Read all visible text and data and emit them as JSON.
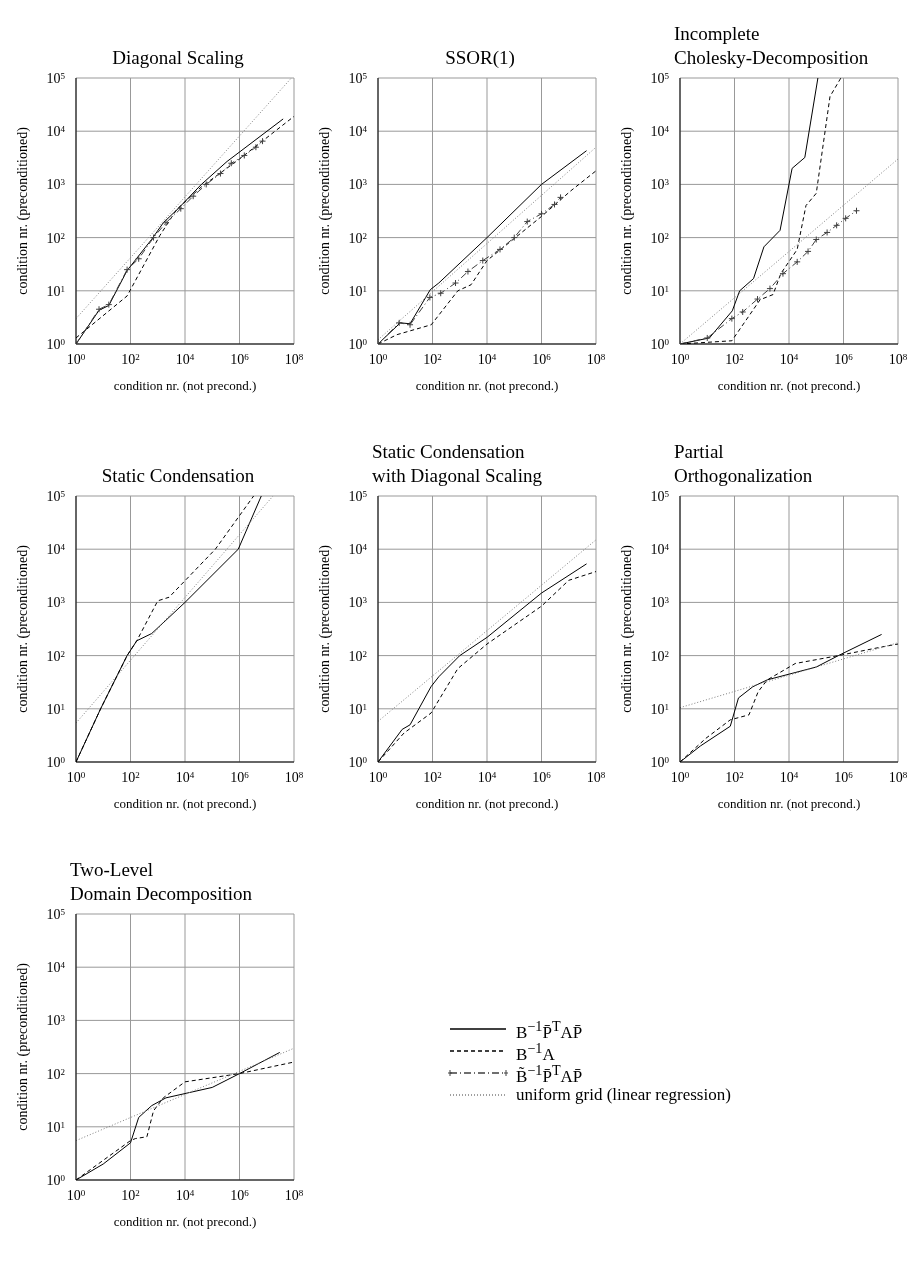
{
  "chart_data": [
    {
      "type": "line",
      "title": "Diagonal Scaling",
      "xlabel": "condition nr.  (not precond.)",
      "ylabel": "condition nr.  (preconditioned)",
      "log": "xy",
      "grid": true,
      "legend": "bottom right",
      "xlim": [
        1,
        100000000.0
      ],
      "ylim": [
        1,
        100000.0
      ],
      "xticks": [
        {
          "value": 1,
          "label": "10$^{0}$"
        },
        {
          "value": 100,
          "label": "10$^{2}$"
        },
        {
          "value": 10000,
          "label": "10$^{4}$"
        },
        {
          "value": 1000000,
          "label": "10$^{6}$"
        },
        {
          "value": 100000000.0,
          "label": "10$^{8}$"
        }
      ],
      "yticks": [
        {
          "value": 1,
          "label": "10$^{0}$"
        },
        {
          "value": 10,
          "label": "10$^{1}$"
        },
        {
          "value": 100,
          "label": "10$^{2}$"
        },
        {
          "value": 1000,
          "label": "10$^{3}$"
        },
        {
          "value": 10000,
          "label": "10$^{4}$"
        },
        {
          "value": 100000,
          "label": "10$^{5}$"
        }
      ],
      "series": [
        {
          "name": "B$^{−1}$P̄$^{T}$AP̄",
          "color": "#000000",
          "line_style": "solid",
          "x": [
            1,
            7,
            16,
            75,
            600,
            1600,
            5600,
            40000,
            350000,
            40000000
          ],
          "values": [
            1,
            4.3,
            5.3,
            24,
            93,
            190,
            350,
            1000,
            2700,
            17000
          ]
        },
        {
          "name": "B$^{−1}$A",
          "color": "#000000",
          "line_style": "dashed",
          "x": [
            1,
            75,
            1200,
            5000,
            40000,
            1000000,
            100000000.0
          ],
          "values": [
            1.3,
            8,
            110,
            340,
            900,
            3000,
            19000
          ]
        },
        {
          "name": "B̃$^{−1}$P̄$^{T}$AP̄",
          "color": "#404040",
          "line_style": "dashdot",
          "marker": "cross",
          "x": [
            1,
            7,
            16,
            75,
            200,
            700,
            2000,
            7000,
            20000,
            60000,
            200000,
            500000,
            1500000,
            4000000,
            7000000
          ],
          "values": [
            1,
            4.5,
            5.5,
            25,
            40,
            100,
            190,
            350,
            600,
            1000,
            1600,
            2500,
            3500,
            5000,
            6500
          ]
        },
        {
          "name": "uniform grid (linear regression)",
          "color": "#808080",
          "line_style": "dotted",
          "x": [
            1,
            80000000
          ],
          "values": [
            3,
            100000
          ]
        }
      ]
    },
    {
      "type": "line",
      "title": "SSOR(1)",
      "xlabel": "condition nr.  (not precond.)",
      "ylabel": "condition nr.  (preconditioned)",
      "log": "xy",
      "grid": true,
      "xlim": [
        1,
        100000000.0
      ],
      "ylim": [
        1,
        100000.0
      ],
      "xticks": [
        {
          "value": 1,
          "label": "10$^{0}$"
        },
        {
          "value": 100,
          "label": "10$^{2}$"
        },
        {
          "value": 10000,
          "label": "10$^{4}$"
        },
        {
          "value": 1000000,
          "label": "10$^{6}$"
        },
        {
          "value": 100000000.0,
          "label": "10$^{8}$"
        }
      ],
      "yticks": [
        {
          "value": 1,
          "label": "10$^{0}$"
        },
        {
          "value": 10,
          "label": "10$^{1}$"
        },
        {
          "value": 100,
          "label": "10$^{2}$"
        },
        {
          "value": 1000,
          "label": "10$^{3}$"
        },
        {
          "value": 10000,
          "label": "10$^{4}$"
        },
        {
          "value": 100000,
          "label": "10$^{5}$"
        }
      ],
      "series": [
        {
          "color": "#000000",
          "line_style": "solid",
          "x": [
            1,
            6.6,
            15,
            83,
            170,
            10000,
            1000000,
            45000000
          ],
          "values": [
            1,
            2.5,
            2.4,
            10.5,
            14,
            100,
            1000,
            4300
          ]
        },
        {
          "color": "#000000",
          "line_style": "dashed",
          "x": [
            1,
            5,
            90,
            850,
            2600,
            10000,
            1000000,
            12000000,
            100000000.0
          ],
          "values": [
            1,
            1.5,
            2.3,
            10,
            13,
            37,
            250,
            760,
            1800
          ]
        },
        {
          "color": "#404040",
          "line_style": "dashdot",
          "marker": "cross",
          "x": [
            1,
            6,
            15,
            80,
            200,
            700,
            2000,
            7000,
            30000,
            100000,
            300000,
            1000000,
            3000000,
            5000000
          ],
          "values": [
            1,
            2.5,
            2.3,
            7.5,
            9,
            14,
            23,
            37,
            60,
            100,
            200,
            280,
            420,
            570
          ]
        },
        {
          "color": "#808080",
          "line_style": "dotted",
          "x": [
            1,
            100000000.0
          ],
          "values": [
            1.2,
            5000
          ]
        }
      ]
    },
    {
      "type": "line",
      "title": "Incomplete\nCholesky-Decomposition",
      "xlabel": "condition nr.  (not precond.)",
      "ylabel": "condition nr.  (preconditioned)",
      "log": "xy",
      "grid": true,
      "xlim": [
        1,
        100000000.0
      ],
      "ylim": [
        1,
        100000.0
      ],
      "xticks": [
        {
          "value": 1,
          "label": "10$^{0}$"
        },
        {
          "value": 100,
          "label": "10$^{2}$"
        },
        {
          "value": 10000,
          "label": "10$^{4}$"
        },
        {
          "value": 1000000,
          "label": "10$^{6}$"
        },
        {
          "value": 100000000.0,
          "label": "10$^{8}$"
        }
      ],
      "yticks": [
        {
          "value": 1,
          "label": "10$^{0}$"
        },
        {
          "value": 10,
          "label": "10$^{1}$"
        },
        {
          "value": 100,
          "label": "10$^{2}$"
        },
        {
          "value": 1000,
          "label": "10$^{3}$"
        },
        {
          "value": 10000,
          "label": "10$^{4}$"
        },
        {
          "value": 100000,
          "label": "10$^{5}$"
        }
      ],
      "series": [
        {
          "color": "#000000",
          "line_style": "solid",
          "x": [
            1,
            12,
            83,
            155,
            500,
            1200,
            4700,
            13000,
            38000,
            115000
          ],
          "values": [
            1,
            1.3,
            4.2,
            10,
            17,
            67,
            137,
            2000,
            3200,
            100000
          ]
        },
        {
          "color": "#000000",
          "line_style": "dashed",
          "x": [
            1,
            80,
            870,
            2600,
            5000,
            20000,
            42000,
            100000,
            320000,
            800000
          ],
          "values": [
            1,
            1.15,
            6.8,
            8.5,
            21,
            60,
            400,
            680,
            45000,
            100000
          ]
        },
        {
          "color": "#404040",
          "line_style": "dashdot",
          "marker": "cross",
          "x": [
            1,
            10,
            80,
            200,
            700,
            2000,
            6000,
            20000,
            50000,
            100000,
            250000,
            560000,
            1200000,
            3000000
          ],
          "values": [
            1,
            1.3,
            3,
            4,
            7,
            11,
            21,
            35,
            55,
            92,
            125,
            170,
            230,
            320
          ]
        },
        {
          "color": "#808080",
          "line_style": "dotted",
          "x": [
            1,
            100000000.0
          ],
          "values": [
            1,
            3000
          ]
        }
      ]
    },
    {
      "type": "line",
      "title": "Static Condensation",
      "xlabel": "condition nr.  (not precond.)",
      "ylabel": "condition nr.  (preconditioned)",
      "log": "xy",
      "grid": true,
      "xlim": [
        1,
        100000000.0
      ],
      "ylim": [
        1,
        100000.0
      ],
      "xticks": [
        {
          "value": 1,
          "label": "10$^{0}$"
        },
        {
          "value": 100,
          "label": "10$^{2}$"
        },
        {
          "value": 10000,
          "label": "10$^{4}$"
        },
        {
          "value": 1000000,
          "label": "10$^{6}$"
        },
        {
          "value": 100000000.0,
          "label": "10$^{8}$"
        }
      ],
      "yticks": [
        {
          "value": 1,
          "label": "10$^{0}$"
        },
        {
          "value": 10,
          "label": "10$^{1}$"
        },
        {
          "value": 100,
          "label": "10$^{2}$"
        },
        {
          "value": 1000,
          "label": "10$^{3}$"
        },
        {
          "value": 10000,
          "label": "10$^{4}$"
        },
        {
          "value": 100000,
          "label": "10$^{5}$"
        }
      ],
      "series": [
        {
          "color": "#000000",
          "line_style": "solid",
          "x": [
            1,
            8,
            75,
            170,
            600,
            10000,
            900000,
            6300000
          ],
          "values": [
            1,
            10,
            100,
            190,
            260,
            1000,
            10000,
            100000
          ]
        },
        {
          "color": "#000000",
          "line_style": "dashed",
          "x": [
            1,
            8,
            75,
            170,
            1000,
            2600,
            130000,
            3300000
          ],
          "values": [
            1,
            10,
            100,
            190,
            1070,
            1250,
            10000,
            100000
          ]
        },
        {
          "color": "#808080",
          "line_style": "dotted",
          "x": [
            1,
            17000000
          ],
          "values": [
            5.4,
            100000
          ]
        }
      ]
    },
    {
      "type": "line",
      "title": "Static Condensation\nwith Diagonal Scaling",
      "xlabel": "condition nr.  (not precond.)",
      "ylabel": "condition nr.  (preconditioned)",
      "log": "xy",
      "grid": true,
      "xlim": [
        1,
        100000000.0
      ],
      "ylim": [
        1,
        100000.0
      ],
      "xticks": [
        {
          "value": 1,
          "label": "10$^{0}$"
        },
        {
          "value": 100,
          "label": "10$^{2}$"
        },
        {
          "value": 10000,
          "label": "10$^{4}$"
        },
        {
          "value": 1000000,
          "label": "10$^{6}$"
        },
        {
          "value": 100000000.0,
          "label": "10$^{8}$"
        }
      ],
      "yticks": [
        {
          "value": 1,
          "label": "10$^{0}$"
        },
        {
          "value": 10,
          "label": "10$^{1}$"
        },
        {
          "value": 100,
          "label": "10$^{2}$"
        },
        {
          "value": 1000,
          "label": "10$^{3}$"
        },
        {
          "value": 10000,
          "label": "10$^{4}$"
        },
        {
          "value": 100000,
          "label": "10$^{5}$"
        }
      ],
      "series": [
        {
          "color": "#000000",
          "line_style": "solid",
          "x": [
            1,
            7.7,
            15,
            88,
            170,
            1000,
            10000,
            1000000,
            45000000
          ],
          "values": [
            1,
            4.1,
            5,
            26,
            40,
            100,
            220,
            1500,
            5300
          ]
        },
        {
          "color": "#000000",
          "line_style": "dashed",
          "x": [
            1,
            9,
            88,
            850,
            10000,
            1000000,
            10000000,
            100000000.0
          ],
          "values": [
            1,
            3.5,
            8.3,
            57,
            165,
            850,
            2600,
            3800
          ]
        },
        {
          "color": "#808080",
          "line_style": "dotted",
          "x": [
            1,
            100000000.0
          ],
          "values": [
            5.8,
            15000
          ]
        }
      ]
    },
    {
      "type": "line",
      "title": "Partial\nOrthogonalization",
      "xlabel": "condition nr.  (not precond.)",
      "ylabel": "condition nr.  (preconditioned)",
      "log": "xy",
      "grid": true,
      "xlim": [
        1,
        100000000.0
      ],
      "ylim": [
        1,
        100000.0
      ],
      "xticks": [
        {
          "value": 1,
          "label": "10$^{0}$"
        },
        {
          "value": 100,
          "label": "10$^{2}$"
        },
        {
          "value": 10000,
          "label": "10$^{4}$"
        },
        {
          "value": 1000000,
          "label": "10$^{6}$"
        },
        {
          "value": 100000000.0,
          "label": "10$^{8}$"
        }
      ],
      "yticks": [
        {
          "value": 1,
          "label": "10$^{0}$"
        },
        {
          "value": 10,
          "label": "10$^{1}$"
        },
        {
          "value": 100,
          "label": "10$^{2}$"
        },
        {
          "value": 1000,
          "label": "10$^{3}$"
        },
        {
          "value": 10000,
          "label": "10$^{4}$"
        },
        {
          "value": 100000,
          "label": "10$^{5}$"
        }
      ],
      "series": [
        {
          "color": "#000000",
          "line_style": "solid",
          "x": [
            1,
            5.6,
            70,
            140,
            470,
            1600,
            100000,
            650000,
            25000000
          ],
          "values": [
            1,
            2,
            4.7,
            16,
            26,
            35,
            61,
            100,
            250
          ]
        },
        {
          "color": "#000000",
          "line_style": "dashed",
          "x": [
            1,
            9,
            70,
            340,
            740,
            1600,
            17000,
            650000,
            25000000,
            100000000.0
          ],
          "values": [
            1,
            2.8,
            6.2,
            7.7,
            21,
            35,
            71,
            100,
            145,
            165
          ]
        },
        {
          "color": "#808080",
          "line_style": "dotted",
          "x": [
            1,
            100000000.0
          ],
          "values": [
            10.5,
            175
          ]
        }
      ]
    },
    {
      "type": "line",
      "title": "Two-Level\nDomain Decomposition",
      "xlabel": "condition nr.  (not precond.)",
      "ylabel": "condition nr.  (preconditioned)",
      "log": "xy",
      "grid": true,
      "xlim": [
        1,
        100000000.0
      ],
      "ylim": [
        1,
        100000.0
      ],
      "xticks": [
        {
          "value": 1,
          "label": "10$^{0}$"
        },
        {
          "value": 100,
          "label": "10$^{2}$"
        },
        {
          "value": 10000,
          "label": "10$^{4}$"
        },
        {
          "value": 1000000,
          "label": "10$^{6}$"
        },
        {
          "value": 100000000.0,
          "label": "10$^{8}$"
        }
      ],
      "yticks": [
        {
          "value": 1,
          "label": "10$^{0}$"
        },
        {
          "value": 10,
          "label": "10$^{1}$"
        },
        {
          "value": 100,
          "label": "10$^{2}$"
        },
        {
          "value": 1000,
          "label": "10$^{3}$"
        },
        {
          "value": 10000,
          "label": "10$^{4}$"
        },
        {
          "value": 100000,
          "label": "10$^{5}$"
        }
      ],
      "series": [
        {
          "color": "#000000",
          "line_style": "solid",
          "x": [
            1,
            10,
            100,
            200,
            600,
            2000,
            100000,
            1000000,
            30000000
          ],
          "values": [
            1,
            2,
            5,
            15,
            25,
            35,
            55,
            100,
            250
          ]
        },
        {
          "color": "#000000",
          "line_style": "dashed",
          "x": [
            1,
            100,
            150,
            400,
            700,
            1600,
            10000,
            1000000,
            100000000.0
          ],
          "values": [
            1,
            5.5,
            6,
            6.5,
            20,
            35,
            70,
            100,
            165
          ]
        },
        {
          "color": "#808080",
          "line_style": "dotted",
          "x": [
            1,
            100000000.0
          ],
          "values": [
            5.5,
            300
          ]
        }
      ]
    }
  ]
}
